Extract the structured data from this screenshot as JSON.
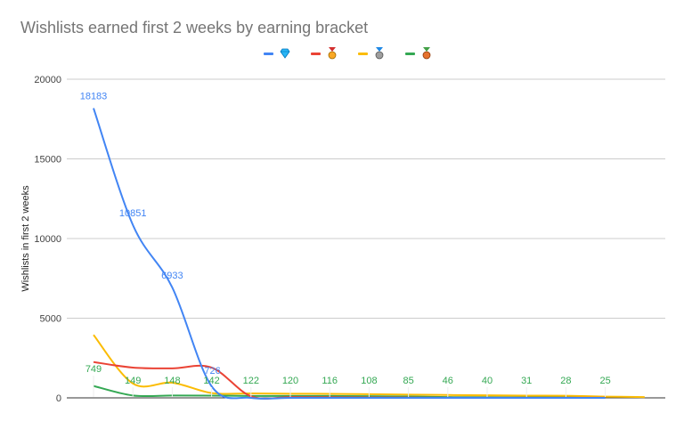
{
  "title": "Wishlists earned first 2 weeks by earning bracket",
  "legend": [
    {
      "name": "diamond-bracket",
      "icon": "gem-icon",
      "color": "#4285f4"
    },
    {
      "name": "gold-bracket",
      "icon": "gold-medal-icon",
      "color": "#ea4335"
    },
    {
      "name": "silver-bracket",
      "icon": "silver-medal-icon",
      "color": "#fbbc04"
    },
    {
      "name": "bronze-bracket",
      "icon": "bronze-medal-icon",
      "color": "#34a853"
    }
  ],
  "chart_data": {
    "type": "line",
    "title": "Wishlists earned first 2 weeks by earning bracket",
    "xlabel": "",
    "ylabel": "Wishlists in first 2 weeks",
    "ylim": [
      0,
      20000
    ],
    "yticks": [
      0,
      5000,
      10000,
      15000,
      20000
    ],
    "grid": true,
    "legend_position": "top",
    "x": [
      1,
      2,
      3,
      4,
      5,
      6,
      7,
      8,
      9,
      10,
      11,
      12,
      13,
      14,
      15
    ],
    "series": [
      {
        "name": "💎 (diamond)",
        "color": "#4285f4",
        "values": [
          18183,
          10851,
          6933,
          726,
          0,
          0,
          0,
          0,
          0,
          0,
          0,
          0,
          0,
          0,
          null
        ],
        "labels": [
          18183,
          10851,
          6933,
          726
        ]
      },
      {
        "name": "🥇 (gold)",
        "color": "#ea4335",
        "values": [
          2250,
          1900,
          1850,
          1900,
          100,
          50,
          40,
          30,
          20,
          10,
          10,
          10,
          10,
          5,
          null
        ]
      },
      {
        "name": "🥈 (silver)",
        "color": "#fbbc04",
        "values": [
          3950,
          900,
          950,
          300,
          280,
          260,
          250,
          230,
          200,
          180,
          160,
          140,
          130,
          80,
          50
        ]
      },
      {
        "name": "🥉 (bronze)",
        "color": "#34a853",
        "values": [
          749,
          149,
          148,
          142,
          122,
          120,
          116,
          108,
          85,
          46,
          40,
          31,
          28,
          25,
          null
        ],
        "labels": [
          749,
          149,
          148,
          142,
          122,
          120,
          116,
          108,
          85,
          46,
          40,
          31,
          28,
          25
        ]
      }
    ]
  },
  "axis": {
    "y_ticks": [
      "20000",
      "15000",
      "10000",
      "5000",
      "0"
    ]
  }
}
